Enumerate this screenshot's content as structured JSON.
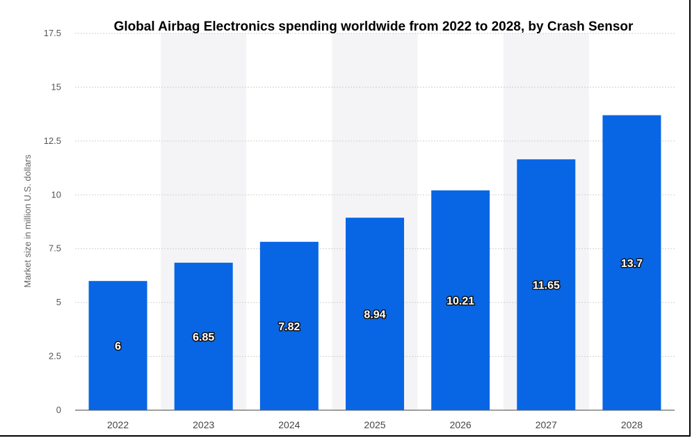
{
  "chart_data": {
    "type": "bar",
    "title": "Global Airbag Electronics spending worldwide from 2022 to 2028, by Crash Sensor",
    "ylabel": "Market size in million U.S. dollars",
    "xlabel": "",
    "categories": [
      "2022",
      "2023",
      "2024",
      "2025",
      "2026",
      "2027",
      "2028"
    ],
    "values": [
      6,
      6.85,
      7.82,
      8.94,
      10.21,
      11.65,
      13.7
    ],
    "value_labels": [
      "6",
      "6.85",
      "7.82",
      "8.94",
      "10.21",
      "11.65",
      "13.7"
    ],
    "ylim": [
      0,
      17.5
    ],
    "yticks": [
      0,
      2.5,
      5,
      7.5,
      10,
      12.5,
      15,
      17.5
    ],
    "ytick_labels": [
      "0",
      "2.5",
      "5",
      "7.5",
      "10",
      "12.5",
      "15",
      "17.5"
    ],
    "grid": true,
    "bar_color": "#0866E5",
    "band_color": "#F4F4F6"
  }
}
